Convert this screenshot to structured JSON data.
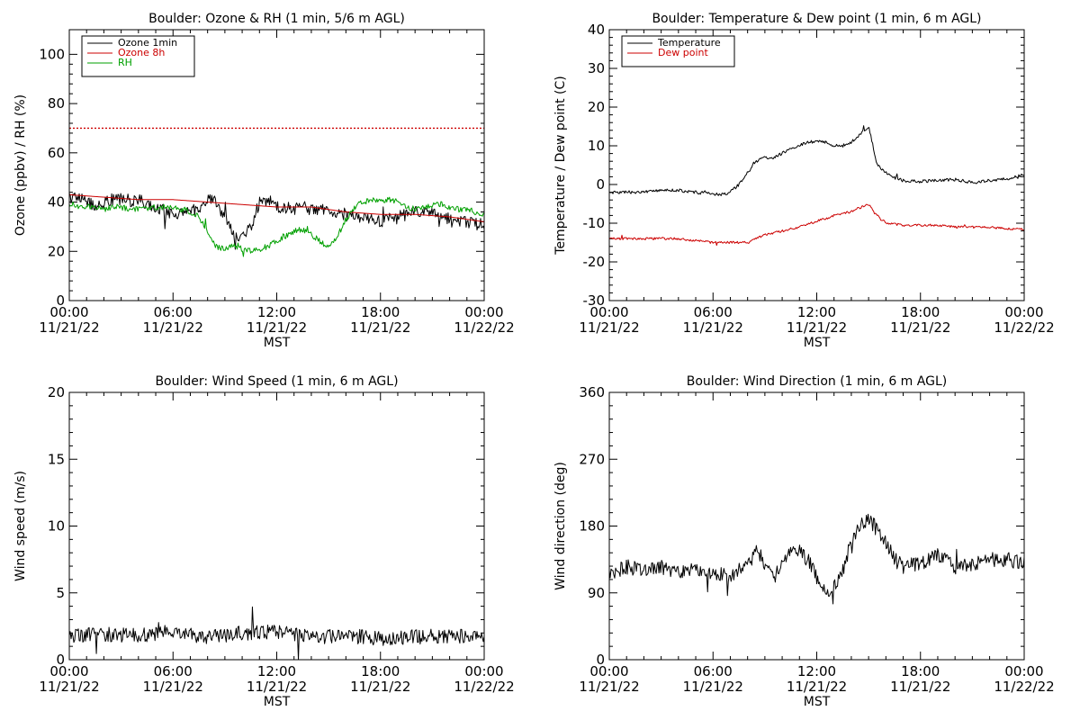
{
  "chart_data": [
    {
      "type": "line",
      "title": "Boulder: Ozone & RH (1 min, 5/6 m AGL)",
      "ylabel": "Ozone (ppbv) / RH (%)",
      "xlabel": "MST",
      "ylim": [
        0,
        110
      ],
      "yticks": [
        0,
        20,
        40,
        60,
        80,
        100
      ],
      "xlim": [
        0,
        24
      ],
      "x_ticks": [
        {
          "time": "00:00",
          "date": "11/21/22"
        },
        {
          "time": "06:00",
          "date": "11/21/22"
        },
        {
          "time": "12:00",
          "date": "11/21/22"
        },
        {
          "time": "18:00",
          "date": "11/21/22"
        },
        {
          "time": "00:00",
          "date": "11/22/22"
        }
      ],
      "reference_line": {
        "y": 70,
        "color": "#cc0000",
        "style": "dotted"
      },
      "legend_position": "top-left",
      "series": [
        {
          "name": "Ozone 1min",
          "color": "#000000",
          "noise": 2.5,
          "x": [
            0,
            0.5,
            1,
            1.5,
            2,
            2.5,
            3,
            3.5,
            4,
            4.5,
            5,
            5.5,
            6,
            6.5,
            7,
            7.5,
            8,
            8.5,
            9,
            9.5,
            10,
            10.5,
            11,
            11.5,
            12,
            12.5,
            13,
            13.5,
            14,
            14.5,
            15,
            15.5,
            16,
            16.5,
            17,
            17.5,
            18,
            18.5,
            19,
            19.5,
            20,
            20.5,
            21,
            21.5,
            22,
            22.5,
            23,
            23.5,
            24
          ],
          "y": [
            42,
            42,
            41,
            38,
            40,
            41,
            41,
            40,
            41,
            39,
            38,
            37,
            35,
            36,
            36,
            38,
            41,
            40,
            34,
            26,
            27,
            30,
            40,
            41,
            38,
            38,
            37,
            38,
            37,
            37,
            36,
            36,
            35,
            34,
            33,
            33,
            32,
            33,
            34,
            35,
            36,
            36,
            35,
            34,
            33,
            32,
            32,
            31,
            31
          ]
        },
        {
          "name": "Ozone 8h",
          "color": "#cc0000",
          "noise": 0,
          "x": [
            0,
            2,
            4,
            6,
            8,
            10,
            12,
            14,
            16,
            18,
            20,
            22,
            24
          ],
          "y": [
            43,
            42,
            41,
            41,
            40,
            39,
            38,
            38,
            36,
            35,
            35,
            34,
            32
          ]
        },
        {
          "name": "RH",
          "color": "#00a000",
          "noise": 1.2,
          "x": [
            0,
            0.5,
            1,
            1.5,
            2,
            2.5,
            3,
            3.5,
            4,
            4.5,
            5,
            5.5,
            6,
            6.5,
            7,
            7.5,
            8,
            8.5,
            9,
            9.5,
            10,
            10.5,
            11,
            11.5,
            12,
            12.5,
            13,
            13.5,
            14,
            14.5,
            15,
            15.5,
            16,
            16.5,
            17,
            17.5,
            18,
            18.5,
            19,
            19.5,
            20,
            20.5,
            21,
            21.5,
            22,
            22.5,
            23,
            23.5,
            24
          ],
          "y": [
            38,
            38,
            38,
            38,
            37,
            38,
            38,
            37,
            37,
            37,
            38,
            38,
            38,
            37,
            36,
            34,
            28,
            22,
            21,
            22,
            21,
            20,
            21,
            22,
            24,
            26,
            28,
            29,
            27,
            24,
            22,
            26,
            33,
            38,
            40,
            41,
            41,
            41,
            40,
            38,
            37,
            38,
            39,
            39,
            38,
            37,
            37,
            36,
            35
          ]
        }
      ]
    },
    {
      "type": "line",
      "title": "Boulder: Temperature & Dew point (1 min, 6 m AGL)",
      "ylabel": "Temperature / Dew point (C)",
      "xlabel": "MST",
      "ylim": [
        -30,
        40
      ],
      "yticks": [
        -30,
        -20,
        -10,
        0,
        10,
        20,
        30,
        40
      ],
      "xlim": [
        0,
        24
      ],
      "x_ticks": [
        {
          "time": "00:00",
          "date": "11/21/22"
        },
        {
          "time": "06:00",
          "date": "11/21/22"
        },
        {
          "time": "12:00",
          "date": "11/21/22"
        },
        {
          "time": "18:00",
          "date": "11/21/22"
        },
        {
          "time": "00:00",
          "date": "11/22/22"
        }
      ],
      "legend_position": "top-left",
      "series": [
        {
          "name": "Temperature",
          "color": "#000000",
          "noise": 0.4,
          "x": [
            0,
            1,
            2,
            3,
            4,
            5,
            6,
            6.5,
            7,
            7.5,
            8,
            8.5,
            9,
            9.5,
            10,
            10.5,
            11,
            11.5,
            12,
            12.5,
            13,
            13.5,
            14,
            14.5,
            15,
            15.5,
            16,
            16.5,
            17,
            18,
            19,
            20,
            21,
            22,
            23,
            24
          ],
          "y": [
            -2,
            -2,
            -2,
            -1.5,
            -1.5,
            -2,
            -2.5,
            -2.5,
            -2,
            0,
            3,
            6,
            7,
            7,
            8,
            9.5,
            10,
            11,
            11,
            11,
            10,
            10,
            11,
            13,
            15,
            5,
            3,
            2,
            1,
            0.8,
            1,
            1.3,
            0.5,
            1,
            1.5,
            2.5
          ]
        },
        {
          "name": "Dew point",
          "color": "#cc0000",
          "noise": 0.3,
          "x": [
            0,
            1,
            2,
            3,
            4,
            5,
            6,
            7,
            8,
            8.5,
            9,
            10,
            11,
            12,
            13,
            14,
            14.5,
            15,
            15.5,
            16,
            17,
            18,
            19,
            20,
            21,
            22,
            23,
            24
          ],
          "y": [
            -14,
            -14,
            -14,
            -14,
            -14,
            -14.5,
            -15,
            -15,
            -15,
            -14,
            -13,
            -12,
            -11,
            -9.5,
            -8,
            -7,
            -6,
            -5,
            -8,
            -10,
            -10.5,
            -10.5,
            -10.5,
            -11,
            -11,
            -11,
            -11.5,
            -11.5
          ]
        }
      ]
    },
    {
      "type": "line",
      "title": "Boulder: Wind Speed (1 min, 6 m AGL)",
      "ylabel": "Wind speed (m/s)",
      "xlabel": "MST",
      "ylim": [
        0,
        20
      ],
      "yticks": [
        0,
        5,
        10,
        15,
        20
      ],
      "xlim": [
        0,
        24
      ],
      "x_ticks": [
        {
          "time": "00:00",
          "date": "11/21/22"
        },
        {
          "time": "06:00",
          "date": "11/21/22"
        },
        {
          "time": "12:00",
          "date": "11/21/22"
        },
        {
          "time": "18:00",
          "date": "11/21/22"
        },
        {
          "time": "00:00",
          "date": "11/22/22"
        }
      ],
      "series": [
        {
          "color": "#000000",
          "noise": 0.55,
          "x": [
            0,
            2,
            4,
            6,
            8,
            10,
            12,
            14,
            16,
            18,
            20,
            22,
            24
          ],
          "y": [
            1.8,
            1.9,
            1.8,
            2.1,
            1.7,
            2.0,
            2.1,
            1.7,
            1.8,
            1.6,
            1.7,
            1.7,
            1.9
          ]
        }
      ]
    },
    {
      "type": "line",
      "title": "Boulder: Wind Direction (1 min, 6 m AGL)",
      "ylabel": "Wind direction (deg)",
      "xlabel": "MST",
      "ylim": [
        0,
        360
      ],
      "yticks": [
        0,
        90,
        180,
        270,
        360
      ],
      "xlim": [
        0,
        24
      ],
      "x_ticks": [
        {
          "time": "00:00",
          "date": "11/21/22"
        },
        {
          "time": "06:00",
          "date": "11/21/22"
        },
        {
          "time": "12:00",
          "date": "11/21/22"
        },
        {
          "time": "18:00",
          "date": "11/21/22"
        },
        {
          "time": "00:00",
          "date": "11/22/22"
        }
      ],
      "series": [
        {
          "color": "#000000",
          "noise": 10,
          "x": [
            0,
            1,
            2,
            3,
            4,
            5,
            6,
            7,
            8,
            8.5,
            9,
            9.5,
            10,
            10.5,
            11,
            11.5,
            12,
            12.5,
            13,
            13.5,
            14,
            14.5,
            15,
            15.5,
            16,
            16.5,
            17,
            18,
            19,
            20,
            21,
            22,
            23,
            24
          ],
          "y": [
            115,
            125,
            120,
            125,
            118,
            122,
            115,
            115,
            125,
            150,
            130,
            110,
            130,
            150,
            145,
            135,
            110,
            90,
            100,
            120,
            160,
            180,
            190,
            175,
            160,
            135,
            125,
            130,
            140,
            125,
            130,
            135,
            135,
            130
          ]
        }
      ]
    }
  ]
}
